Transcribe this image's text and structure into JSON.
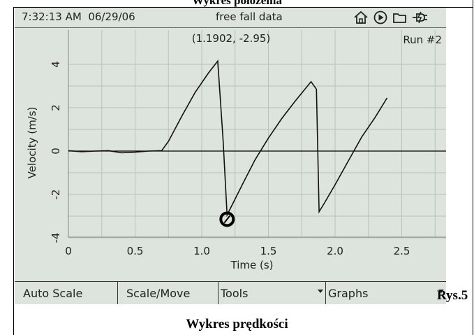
{
  "captions": {
    "top": "Wykres położenia",
    "figure_label": "Rys.5",
    "bottom": "Wykres prędkości"
  },
  "status_bar": {
    "time": "7:32:13 AM",
    "date": "06/29/06",
    "title": "free fall data",
    "icons": [
      "home-icon",
      "play-icon",
      "folder-icon",
      "power-plug-icon"
    ]
  },
  "chart_data": {
    "type": "line",
    "xlabel": "Time (s)",
    "ylabel": "Velocity (m/s)",
    "xlim": [
      0,
      2.6
    ],
    "ylim": [
      -4.4,
      4.6
    ],
    "x_ticks": [
      0,
      0.5,
      1.0,
      1.5,
      2.0,
      2.5
    ],
    "x_tick_labels": [
      "0",
      "0.5",
      "1.0",
      "1.5",
      "2.0",
      "2.5"
    ],
    "y_ticks": [
      4,
      2,
      0,
      -2,
      -4
    ],
    "y_tick_labels": [
      "4",
      "2",
      "0",
      "-2",
      "-4"
    ],
    "grid": true,
    "run_label": "Run #2",
    "cursor": {
      "label": "(1.1902, -2.95)",
      "x": 1.1902,
      "y": -2.95
    },
    "series": [
      {
        "x": [
          0,
          0.1,
          0.2,
          0.3,
          0.4,
          0.5,
          0.6,
          0.7,
          0.75,
          0.85,
          0.95,
          1.05,
          1.12,
          1.16,
          1.19,
          1.3,
          1.4,
          1.5,
          1.6,
          1.7,
          1.82,
          1.86,
          1.88,
          1.92,
          2.0,
          2.1,
          2.2,
          2.3,
          2.39
        ],
        "y": [
          0.02,
          -0.03,
          0.0,
          0.02,
          -0.08,
          -0.05,
          0.0,
          0.02,
          0.45,
          1.6,
          2.7,
          3.6,
          4.15,
          0.5,
          -2.95,
          -1.6,
          -0.4,
          0.6,
          1.5,
          2.3,
          3.2,
          2.85,
          -2.8,
          -2.4,
          -1.55,
          -0.45,
          0.65,
          1.55,
          2.45
        ]
      }
    ]
  },
  "toolbar": {
    "auto_scale": "Auto Scale",
    "scale_move": "Scale/Move",
    "tools": "Tools",
    "graphs": "Graphs"
  }
}
